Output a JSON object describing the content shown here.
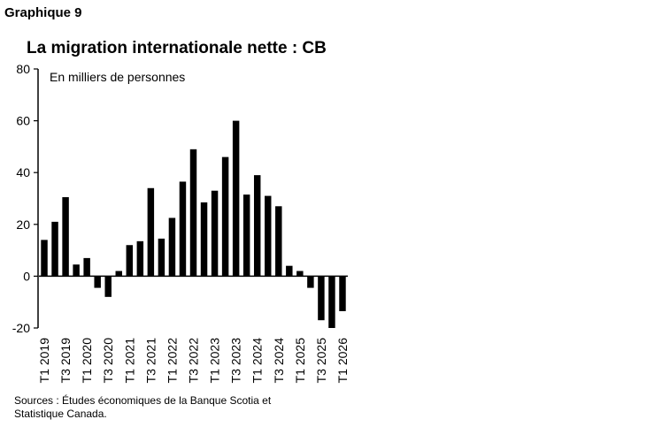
{
  "figure_label": "Graphique 9",
  "source_note": "Sources : Études économiques de la Banque Scotia et Statistique Canada.",
  "chart_data": {
    "type": "bar",
    "title": "La migration internationale nette : CB",
    "ylabel": "En milliers de personnes",
    "xlabel": "",
    "ylim": [
      -20,
      80
    ],
    "yticks": [
      -20,
      0,
      20,
      40,
      60,
      80
    ],
    "grid": false,
    "bar_color": "#000000",
    "categories": [
      "T1 2019",
      "T2 2019",
      "T3 2019",
      "T4 2019",
      "T1 2020",
      "T2 2020",
      "T3 2020",
      "T4 2020",
      "T1 2021",
      "T2 2021",
      "T3 2021",
      "T4 2021",
      "T1 2022",
      "T2 2022",
      "T3 2022",
      "T4 2022",
      "T1 2023",
      "T2 2023",
      "T3 2023",
      "T4 2023",
      "T1 2024",
      "T2 2024",
      "T3 2024",
      "T4 2024",
      "T1 2025",
      "T2 2025",
      "T3 2025",
      "T4 2025",
      "T1 2026"
    ],
    "tick_labels": [
      "T1 2019",
      "T3 2019",
      "T1 2020",
      "T3 2020",
      "T1 2021",
      "T3 2021",
      "T1 2022",
      "T3 2022",
      "T1 2023",
      "T3 2023",
      "T1 2024",
      "T3 2024",
      "T1 2025",
      "T3 2025",
      "T1 2026"
    ],
    "values": [
      14,
      21,
      30.5,
      4.5,
      7,
      -4.5,
      -8,
      2,
      12,
      13.5,
      34,
      14.5,
      22.5,
      36.5,
      49,
      28.5,
      33,
      46,
      60,
      31.5,
      39,
      31,
      27,
      4,
      2,
      -4.5,
      -17,
      -20,
      -13.5
    ]
  }
}
